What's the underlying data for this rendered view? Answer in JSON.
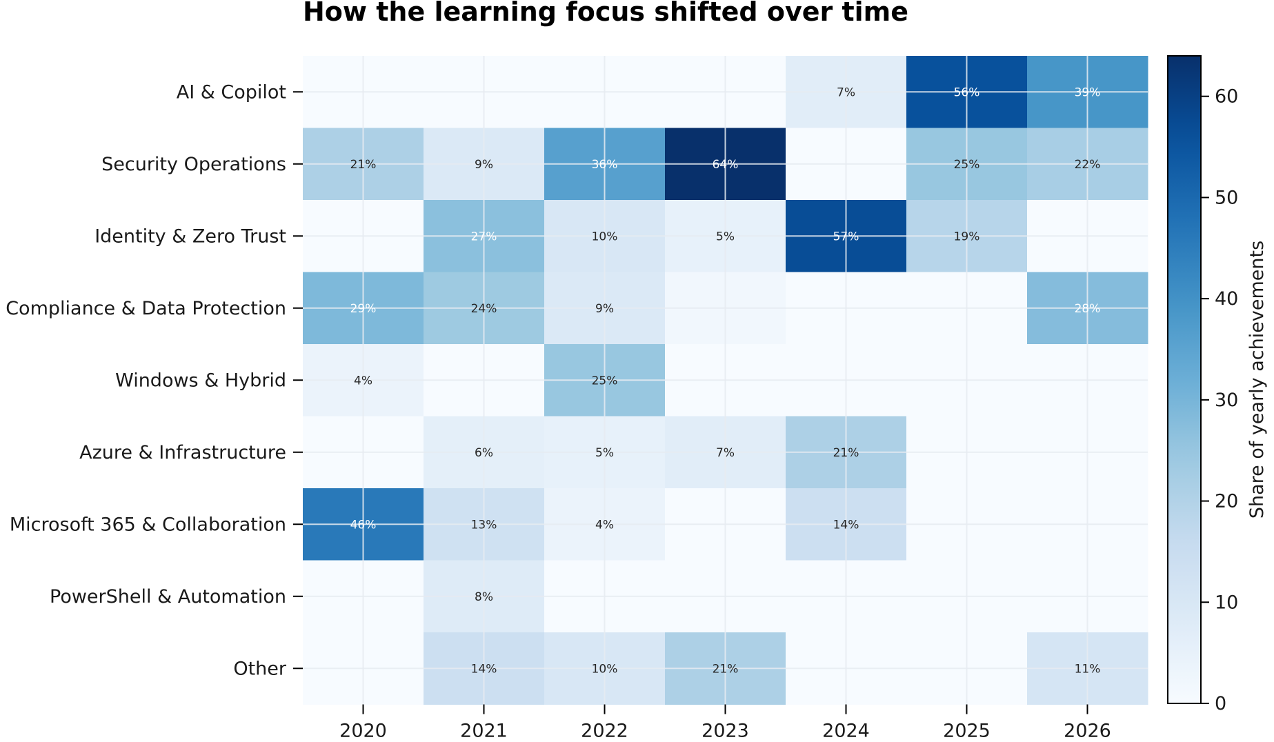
{
  "chart_data": {
    "type": "heatmap",
    "title": "How the learning focus shifted over time",
    "xlabel": "",
    "ylabel": "",
    "x_categories": [
      "2020",
      "2021",
      "2022",
      "2023",
      "2024",
      "2025",
      "2026"
    ],
    "y_categories": [
      "AI & Copilot",
      "Security Operations",
      "Identity & Zero Trust",
      "Compliance & Data Protection",
      "Windows & Hybrid",
      "Azure & Infrastructure",
      "Microsoft 365 & Collaboration",
      "PowerShell & Automation",
      "Other"
    ],
    "values": [
      [
        0,
        0,
        0,
        0,
        7,
        56,
        39
      ],
      [
        21,
        9,
        36,
        64,
        0,
        25,
        22
      ],
      [
        0,
        27,
        10,
        5,
        57,
        19,
        0
      ],
      [
        29,
        24,
        9,
        2,
        0,
        0,
        28
      ],
      [
        4,
        0,
        25,
        0,
        0,
        0,
        0
      ],
      [
        0,
        6,
        5,
        7,
        21,
        0,
        0
      ],
      [
        46,
        13,
        4,
        0,
        14,
        0,
        0
      ],
      [
        0,
        8,
        0,
        0,
        0,
        0,
        0
      ],
      [
        0,
        14,
        10,
        21,
        0,
        0,
        11
      ]
    ],
    "cell_labels": [
      [
        "",
        "",
        "",
        "",
        "7%",
        "56%",
        "39%"
      ],
      [
        "21%",
        "9%",
        "36%",
        "64%",
        "",
        "25%",
        "22%"
      ],
      [
        "",
        "27%",
        "10%",
        "5%",
        "57%",
        "19%",
        ""
      ],
      [
        "29%",
        "24%",
        "9%",
        "",
        "",
        "",
        "28%"
      ],
      [
        "4%",
        "",
        "25%",
        "",
        "",
        "",
        ""
      ],
      [
        "",
        "6%",
        "5%",
        "7%",
        "21%",
        "",
        ""
      ],
      [
        "46%",
        "13%",
        "4%",
        "",
        "14%",
        "",
        ""
      ],
      [
        "",
        "8%",
        "",
        "",
        "",
        "",
        ""
      ],
      [
        "",
        "14%",
        "10%",
        "21%",
        "",
        "",
        "11%"
      ]
    ],
    "colorscale": "Blues",
    "colorbar": {
      "label": "Share of yearly achievements",
      "range": [
        0,
        64
      ],
      "ticks": [
        "0",
        "10",
        "20",
        "30",
        "40",
        "50",
        "60"
      ]
    },
    "grid": true
  }
}
